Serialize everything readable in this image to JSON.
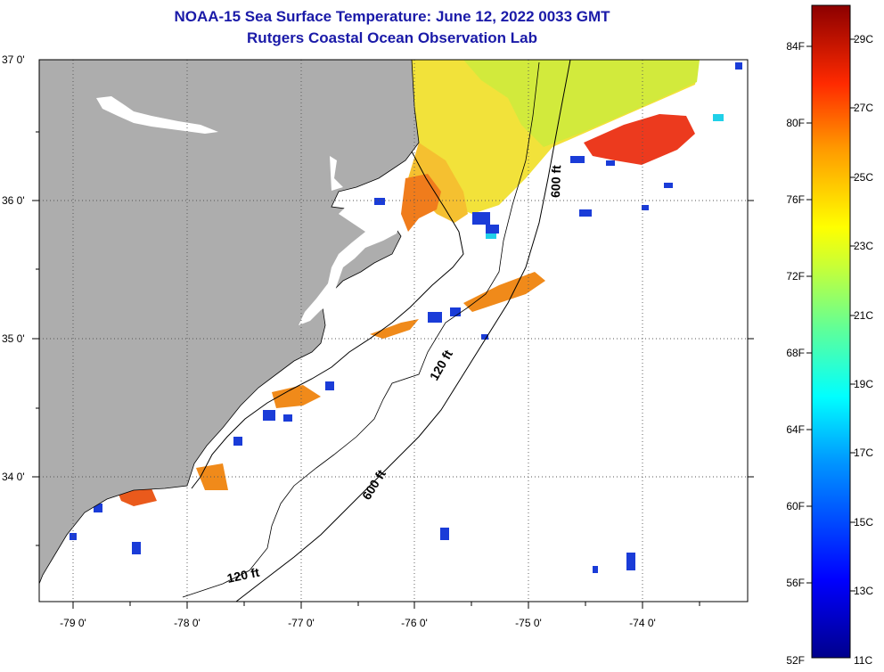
{
  "header": {
    "title": "NOAA-15 Sea Surface Temperature:  June 12, 2022 0033 GMT",
    "subtitle": "Rutgers Coastal Ocean Observation Lab"
  },
  "axes": {
    "lat_labels": [
      "37 0'",
      "36 0'",
      "35 0'",
      "34 0'"
    ],
    "lon_labels": [
      "-79 0'",
      "-78 0'",
      "-77 0'",
      "-76 0'",
      "-75 0'",
      "-74 0'"
    ]
  },
  "depth_labels": {
    "d600_north": "600 ft",
    "d120_mid": "120 ft",
    "d600_south": "600 ft",
    "d120_south": "120 ft"
  },
  "colorbar": {
    "fahrenheit": [
      "84F",
      "80F",
      "76F",
      "72F",
      "68F",
      "64F",
      "60F",
      "56F",
      "52F"
    ],
    "celsius": [
      "29C",
      "27C",
      "25C",
      "23C",
      "21C",
      "19C",
      "17C",
      "15C",
      "13C",
      "11C"
    ]
  },
  "colors": {
    "land": "#adadad",
    "title": "#1a1aa8",
    "warm": "#f08a1a",
    "hot": "#e8281c",
    "mild": "#f2e23a",
    "cool": "#c8ee3c",
    "cold": "#1a3cd8"
  }
}
